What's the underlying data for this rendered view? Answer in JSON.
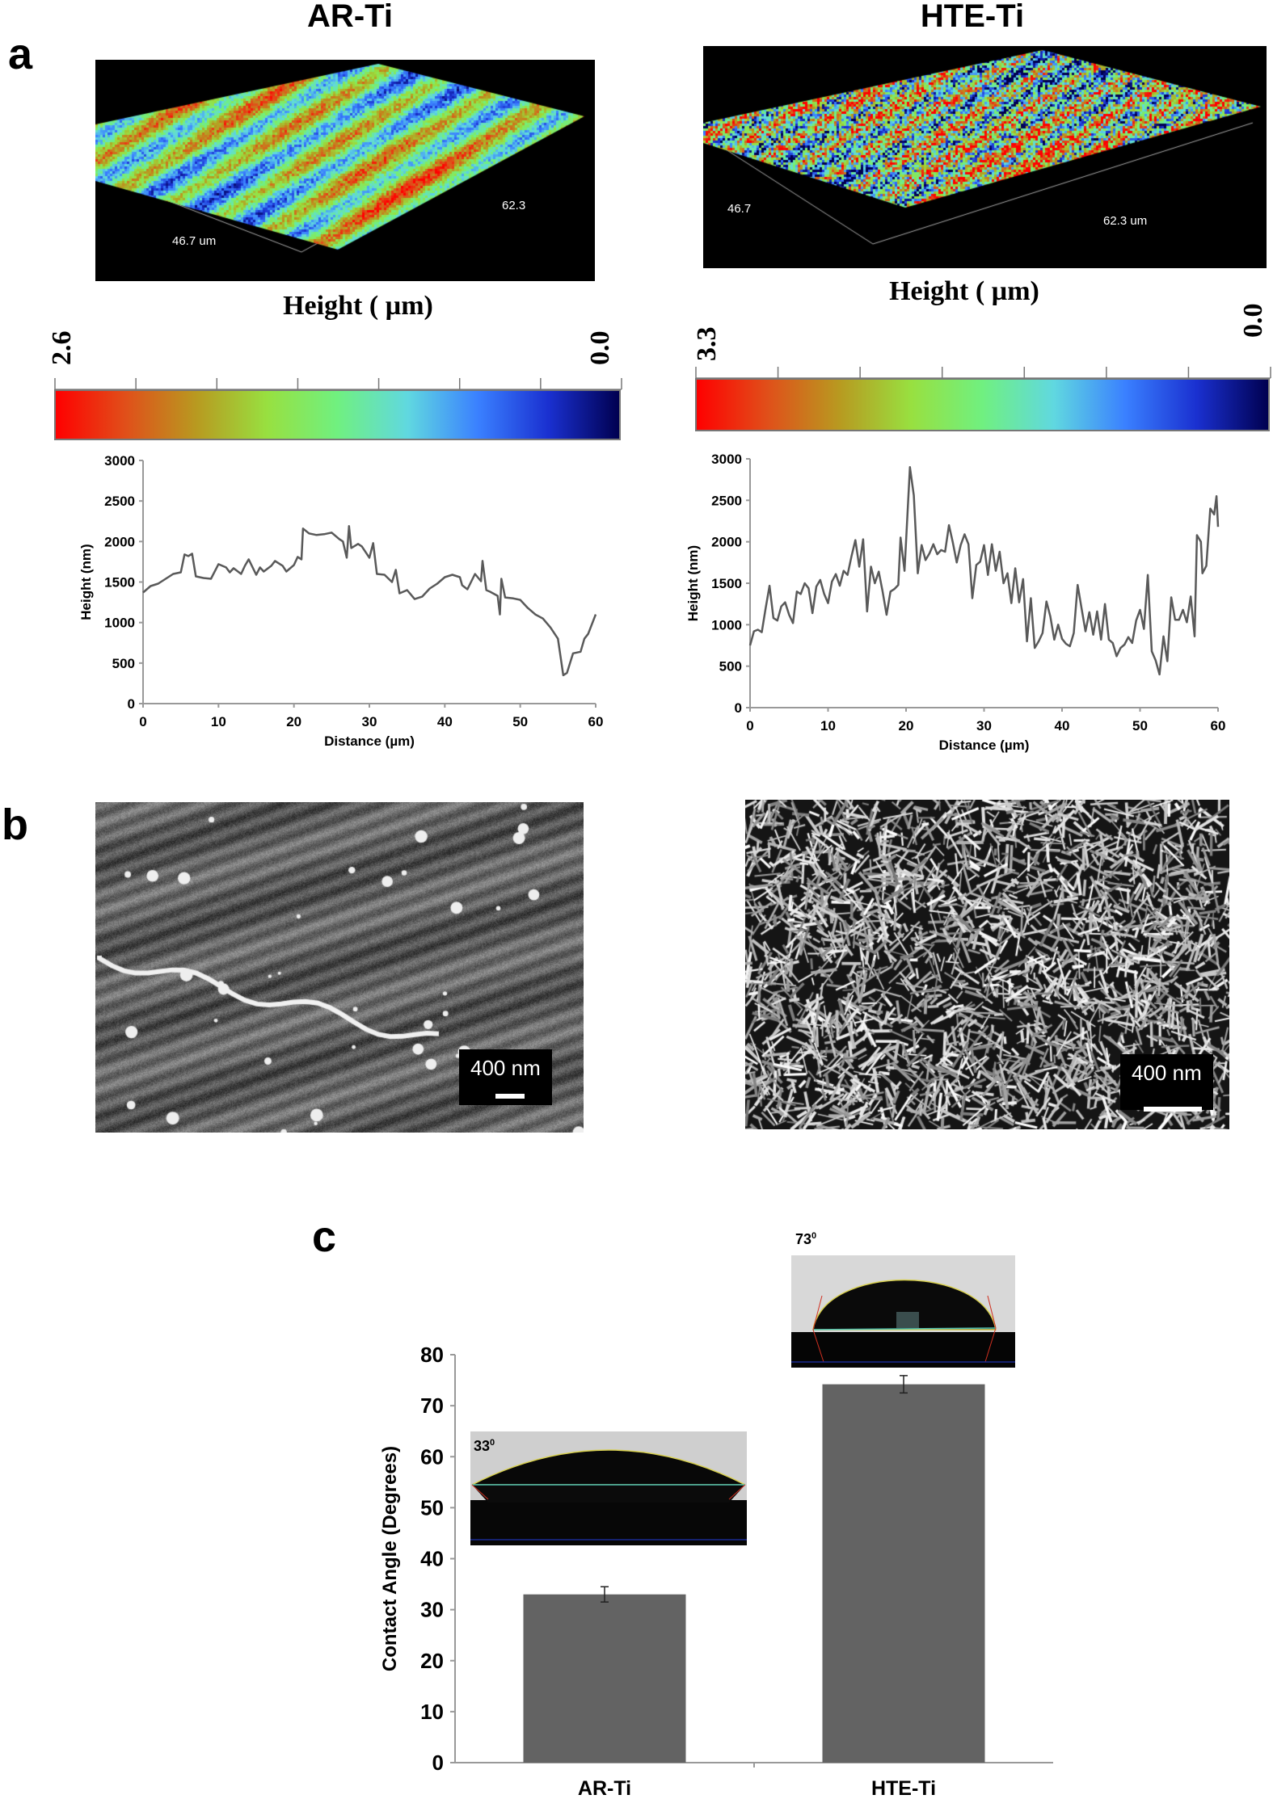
{
  "panel_labels": {
    "a": "a",
    "b": "b",
    "c": "c"
  },
  "columns": {
    "left": "AR-Ti",
    "right": "HTE-Ti"
  },
  "surface_3d": {
    "ar": {
      "dim_left": "46.7 um",
      "dim_right": "62.3"
    },
    "hte": {
      "dim_left": "46.7",
      "dim_right": "62.3 um"
    }
  },
  "colorbars": {
    "title": "Height ( µm)",
    "ar": {
      "max": "2.6",
      "min": "0.0"
    },
    "hte": {
      "max": "3.3",
      "min": "0.0"
    },
    "colors": [
      "#ff0000",
      "#e0501a",
      "#b89a20",
      "#98e040",
      "#70f080",
      "#60d8e0",
      "#3a80ff",
      "#1a30d0",
      "#000050"
    ]
  },
  "sem": {
    "ar": {
      "scale_label": "400 nm"
    },
    "hte": {
      "scale_label": "400 nm"
    }
  },
  "contact_angle_insets": {
    "ar": {
      "angle": "33",
      "sup": "0"
    },
    "hte": {
      "angle": "73",
      "sup": "0"
    }
  },
  "chart_data": [
    {
      "type": "line",
      "panel": "a",
      "sample": "AR-Ti",
      "xlabel": "Distance (µm)",
      "ylabel": "Height (nm)",
      "xlim": [
        0,
        60
      ],
      "ylim": [
        0,
        3000
      ],
      "xticks": [
        "0",
        "10",
        "20",
        "30",
        "40",
        "50",
        "60"
      ],
      "yticks": [
        "0",
        "500",
        "1000",
        "1500",
        "2000",
        "2500",
        "3000"
      ],
      "color": "#595959",
      "x": [
        0,
        1,
        2,
        3,
        4,
        5,
        5.5,
        6,
        6.5,
        7,
        8,
        9,
        10,
        11,
        11.5,
        12,
        13,
        13.5,
        14,
        15,
        15.5,
        16,
        17,
        17.5,
        18.5,
        19,
        20,
        20.5,
        21,
        21.2,
        22,
        23,
        24,
        25,
        26,
        26.5,
        27,
        27.3,
        27.6,
        28.5,
        29,
        30,
        30.5,
        31,
        32,
        33,
        33.5,
        34,
        35,
        36,
        37,
        38,
        39,
        40,
        41,
        42,
        42.3,
        43,
        44,
        44.8,
        45,
        45.5,
        46,
        47,
        47.3,
        47.5,
        48,
        49,
        50,
        51,
        52,
        53,
        54,
        55,
        55.7,
        56.2,
        57,
        58,
        58.5,
        59,
        60
      ],
      "y": [
        1370,
        1450,
        1480,
        1540,
        1600,
        1620,
        1840,
        1820,
        1850,
        1570,
        1550,
        1540,
        1720,
        1680,
        1620,
        1670,
        1600,
        1700,
        1780,
        1590,
        1680,
        1630,
        1700,
        1760,
        1700,
        1630,
        1710,
        1810,
        1780,
        2160,
        2100,
        2080,
        2090,
        2110,
        2030,
        2000,
        1800,
        2190,
        1920,
        1970,
        1940,
        1800,
        1980,
        1600,
        1590,
        1500,
        1650,
        1360,
        1400,
        1290,
        1320,
        1420,
        1480,
        1560,
        1590,
        1560,
        1460,
        1410,
        1600,
        1510,
        1760,
        1400,
        1380,
        1330,
        1100,
        1540,
        1310,
        1300,
        1280,
        1180,
        1100,
        1050,
        940,
        800,
        350,
        380,
        620,
        640,
        800,
        860,
        1100
      ]
    },
    {
      "type": "line",
      "panel": "a",
      "sample": "HTE-Ti",
      "xlabel": "Distance (µm)",
      "ylabel": "Height (nm)",
      "xlim": [
        0,
        60
      ],
      "ylim": [
        0,
        3000
      ],
      "xticks": [
        "0",
        "10",
        "20",
        "30",
        "40",
        "50",
        "60"
      ],
      "yticks": [
        "0",
        "500",
        "1000",
        "1500",
        "2000",
        "2500",
        "3000"
      ],
      "color": "#595959",
      "x": [
        0,
        0.5,
        1,
        1.5,
        2,
        2.5,
        3,
        3.5,
        4,
        4.5,
        5,
        5.5,
        6,
        6.5,
        7,
        7.5,
        8,
        8.5,
        9,
        9.5,
        10,
        10.5,
        11,
        11.5,
        12,
        12.5,
        13,
        13.5,
        14,
        14.5,
        15,
        15.5,
        16,
        16.5,
        17,
        17.5,
        18,
        18.5,
        19,
        19.3,
        19.8,
        20.5,
        21,
        21.5,
        22,
        22.5,
        23,
        23.5,
        24,
        24.5,
        25,
        25.5,
        26,
        26.5,
        27,
        27.5,
        28,
        28.5,
        29,
        29.5,
        30,
        30.5,
        31,
        31.5,
        32,
        32.5,
        33,
        33.5,
        34,
        34.5,
        35,
        35.5,
        36,
        36.5,
        37,
        37.5,
        38,
        38.5,
        39,
        39.5,
        40,
        40.5,
        41,
        41.5,
        42,
        42.5,
        43,
        43.5,
        44,
        44.5,
        45,
        45.5,
        46,
        46.5,
        47,
        47.5,
        48,
        48.5,
        49,
        49.5,
        50,
        50.5,
        51,
        51.5,
        52,
        52.5,
        53,
        53.5,
        54,
        54.5,
        55,
        55.5,
        56,
        56.5,
        57,
        57.3,
        57.8,
        58,
        58.5,
        59,
        59.5,
        59.8,
        60
      ],
      "y": [
        750,
        920,
        940,
        910,
        1200,
        1470,
        1080,
        1050,
        1220,
        1270,
        1120,
        1020,
        1400,
        1370,
        1500,
        1440,
        1140,
        1460,
        1540,
        1370,
        1260,
        1520,
        1610,
        1470,
        1650,
        1600,
        1820,
        2020,
        1700,
        2030,
        1160,
        1700,
        1500,
        1640,
        1400,
        1120,
        1400,
        1430,
        1480,
        2050,
        1650,
        2900,
        2560,
        1620,
        1960,
        1780,
        1860,
        1970,
        1850,
        1900,
        1880,
        2200,
        1990,
        1750,
        1960,
        2090,
        1970,
        1320,
        1720,
        1760,
        1960,
        1600,
        1970,
        1650,
        1880,
        1500,
        1620,
        1260,
        1680,
        1270,
        1550,
        800,
        1320,
        720,
        800,
        900,
        1280,
        1100,
        820,
        1000,
        830,
        770,
        740,
        900,
        1480,
        1200,
        920,
        1150,
        880,
        1160,
        820,
        1250,
        820,
        780,
        620,
        720,
        760,
        850,
        780,
        1050,
        1180,
        950,
        1600,
        680,
        570,
        400,
        860,
        560,
        1330,
        1060,
        1060,
        1180,
        1030,
        1340,
        860,
        2080,
        2000,
        1620,
        1710,
        2400,
        2330,
        2550,
        2180
      ]
    },
    {
      "type": "bar",
      "panel": "c",
      "categories": [
        "AR-Ti",
        "HTE-Ti"
      ],
      "values": [
        33,
        74.2
      ],
      "errors": [
        1.5,
        1.7
      ],
      "ylabel": "Contact Angle (Degrees)",
      "xlabel": "",
      "ylim": [
        0,
        80
      ],
      "yticks": [
        "0",
        "10",
        "20",
        "30",
        "40",
        "50",
        "60",
        "70",
        "80"
      ],
      "color": "#636363"
    }
  ]
}
